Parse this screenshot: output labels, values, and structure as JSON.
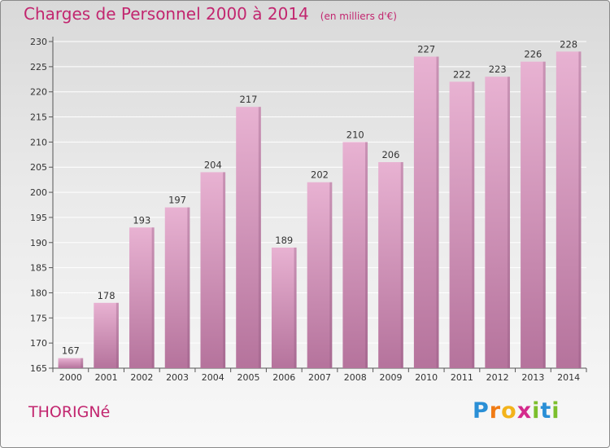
{
  "header": {
    "title": "Charges de Personnel 2000 à 2014",
    "subtitle": "(en milliers d'€)"
  },
  "footer": {
    "commune": "THORIGNé",
    "logo_letters": [
      "P",
      "r",
      "o",
      "x",
      "i",
      "t",
      "i"
    ],
    "logo_colors": [
      "#2a8fd6",
      "#f07b14",
      "#f3b31b",
      "#d42a8c",
      "#7cbf2c",
      "#2a8fd6",
      "#7cbf2c"
    ]
  },
  "colors": {
    "bar_light": "#e8b2d2",
    "bar_dark": "#b5739c",
    "bar_shadow": "#8f5a7d",
    "accent": "#c2266f"
  },
  "chart_data": {
    "type": "bar",
    "title": "Charges de Personnel 2000 à 2014",
    "subtitle": "(en milliers d'€)",
    "xlabel": "",
    "ylabel": "",
    "categories": [
      "2000",
      "2001",
      "2002",
      "2003",
      "2004",
      "2005",
      "2006",
      "2007",
      "2008",
      "2009",
      "2010",
      "2011",
      "2012",
      "2013",
      "2014"
    ],
    "values": [
      167,
      178,
      193,
      197,
      204,
      217,
      189,
      202,
      210,
      206,
      227,
      222,
      223,
      226,
      228
    ],
    "ylim": [
      165,
      230
    ],
    "yticks": [
      165,
      170,
      175,
      180,
      185,
      190,
      195,
      200,
      205,
      210,
      215,
      220,
      225,
      230
    ],
    "grid": true
  }
}
